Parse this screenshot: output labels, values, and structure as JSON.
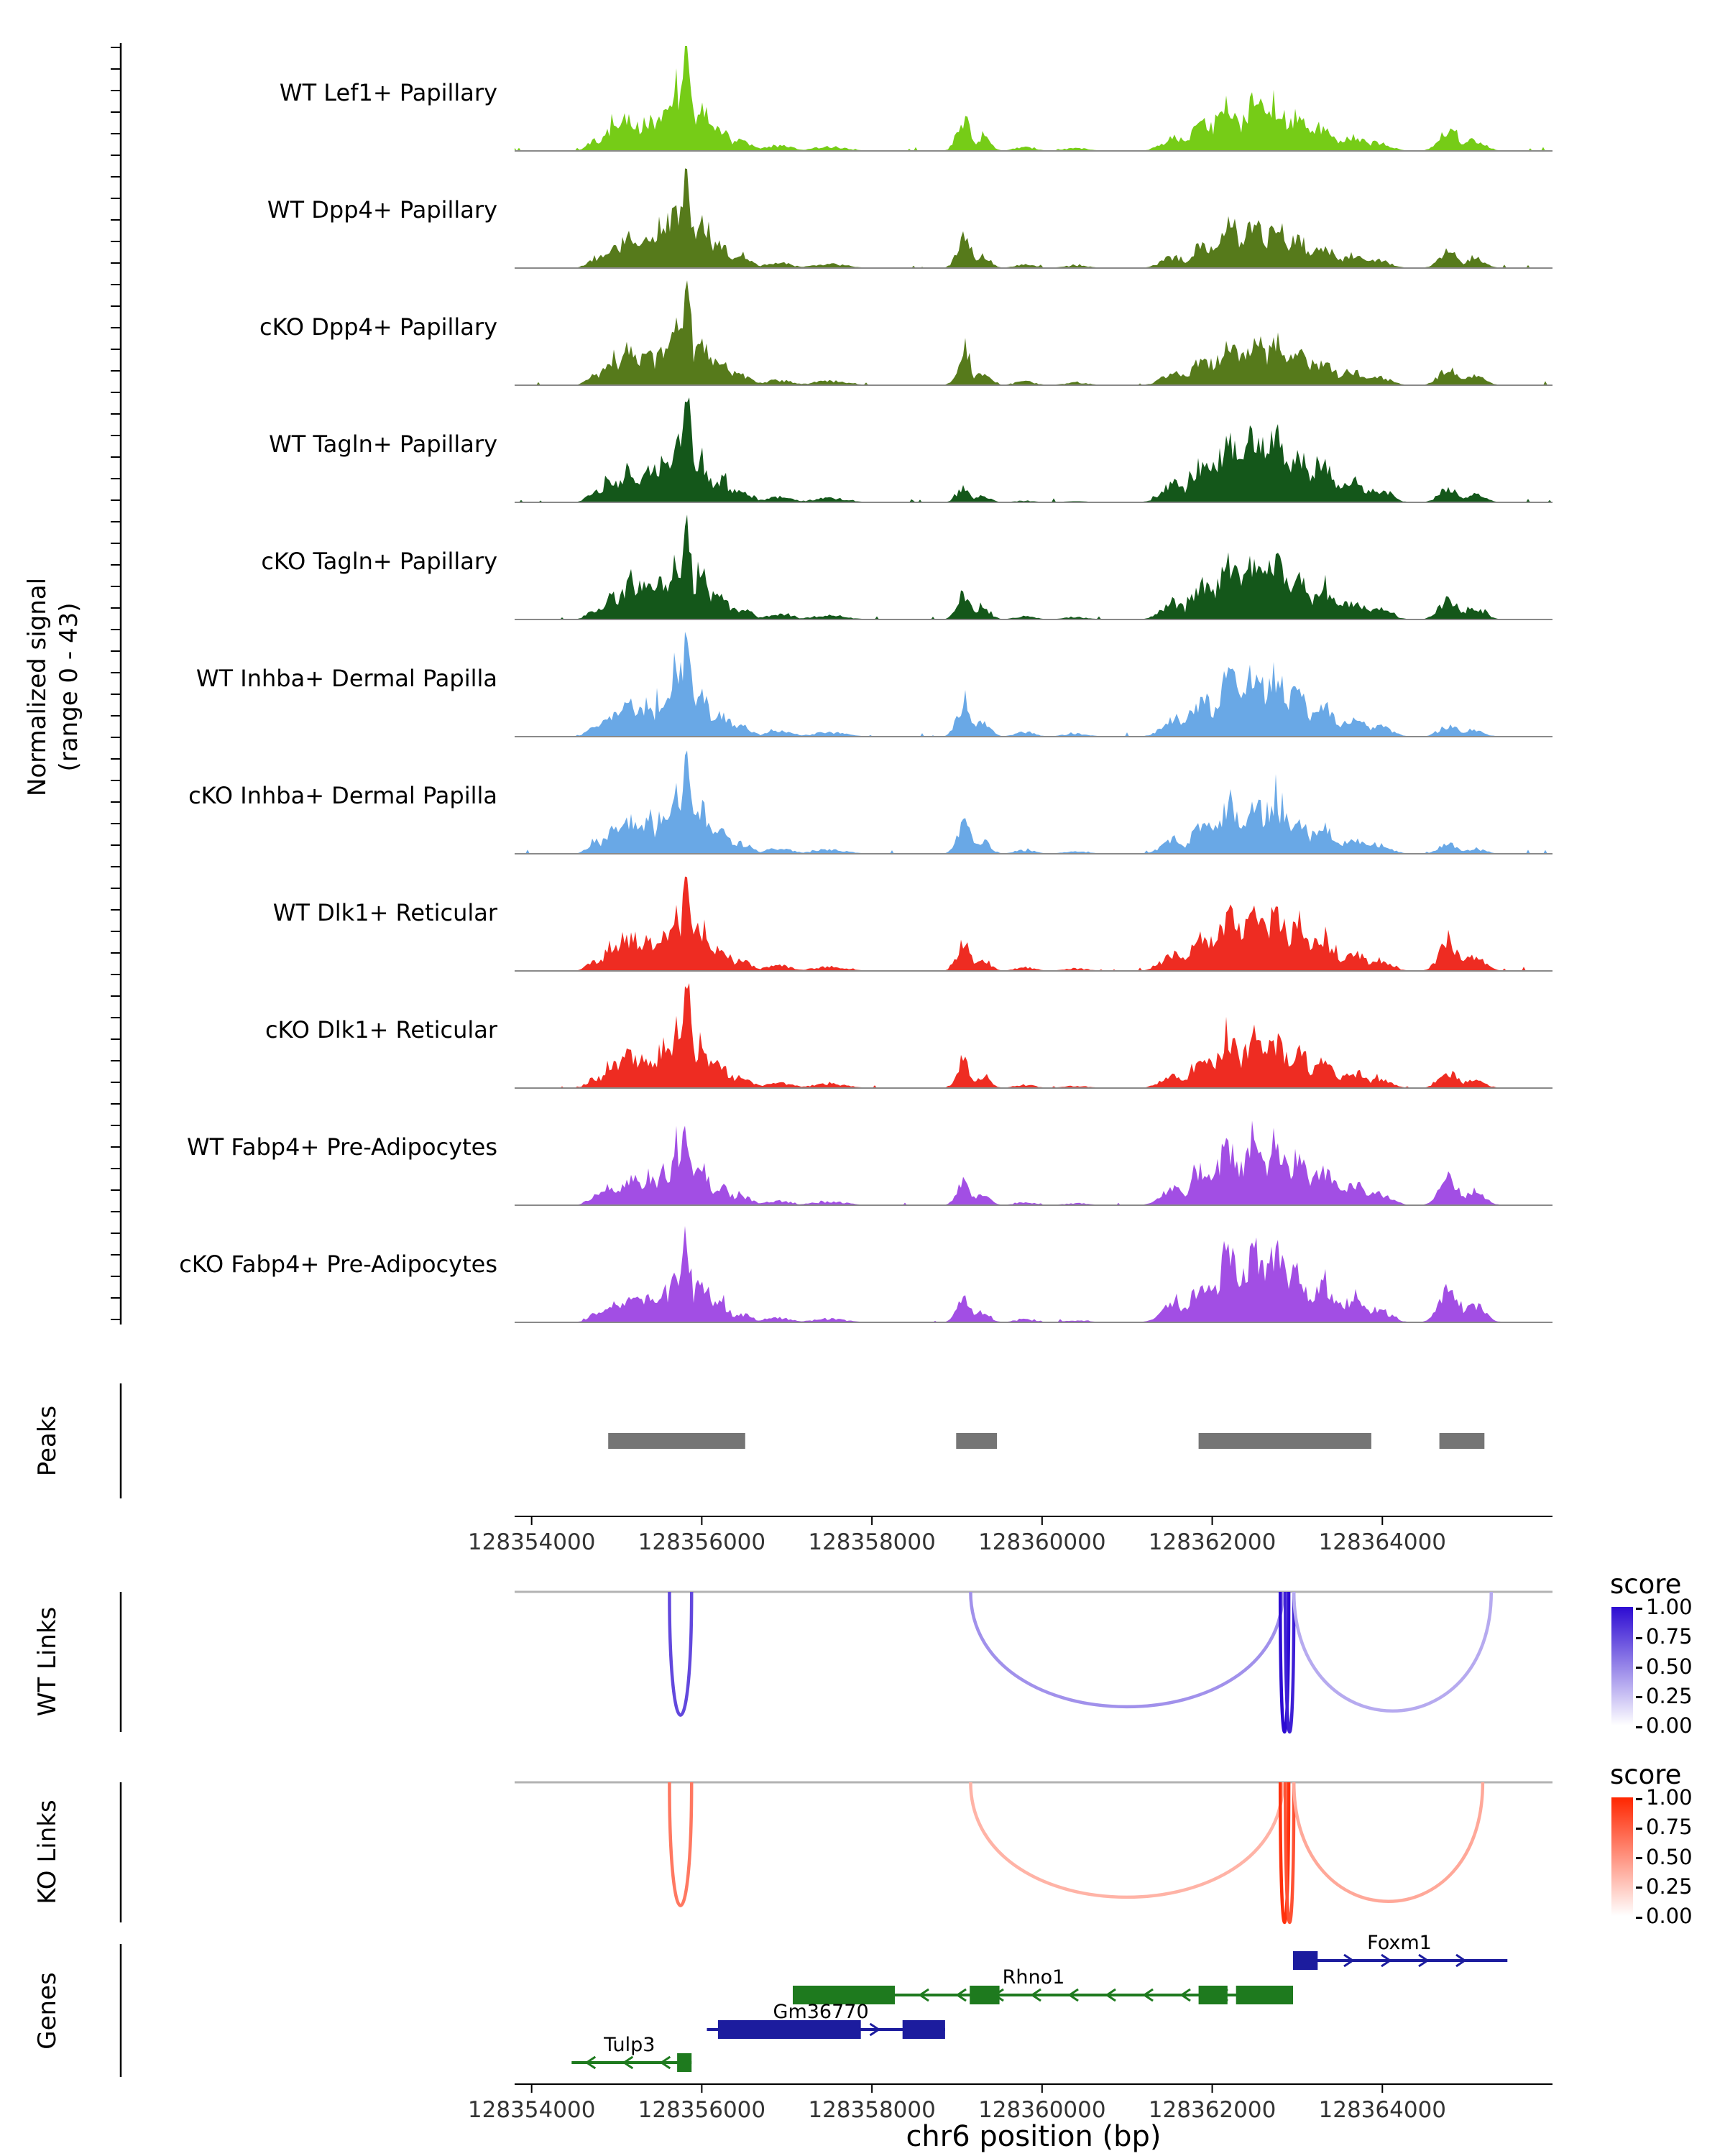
{
  "chart_data": {
    "type": "area",
    "x_title": "chr6 position (bp)",
    "x_domain": [
      128353800,
      128366000
    ],
    "x_ticks": [
      128354000,
      128356000,
      128358000,
      128360000,
      128362000,
      128364000
    ],
    "signal_axis_label": [
      "Normalized signal",
      "(range 0 - 43)"
    ],
    "base_bumps": {
      "A": [
        [
          128354750,
          90,
          0.1
        ],
        [
          128354950,
          110,
          0.22
        ],
        [
          128355150,
          120,
          0.32
        ],
        [
          128355350,
          110,
          0.3
        ],
        [
          128355550,
          100,
          0.38
        ],
        [
          128355700,
          80,
          0.55
        ],
        [
          128355820,
          55,
          1.0
        ],
        [
          128355990,
          100,
          0.42
        ],
        [
          128356200,
          120,
          0.22
        ],
        [
          128356450,
          130,
          0.1
        ],
        [
          128356900,
          160,
          0.05
        ],
        [
          128357500,
          200,
          0.04
        ]
      ],
      "B": [
        [
          128359080,
          80,
          0.95
        ],
        [
          128359300,
          90,
          0.4
        ],
        [
          128359800,
          120,
          0.12
        ],
        [
          128360400,
          150,
          0.08
        ]
      ],
      "C": [
        [
          128361550,
          140,
          0.22
        ],
        [
          128361900,
          140,
          0.48
        ],
        [
          128362200,
          140,
          0.75
        ],
        [
          128362500,
          130,
          0.85
        ],
        [
          128362750,
          120,
          0.8
        ],
        [
          128363000,
          120,
          0.6
        ],
        [
          128363300,
          140,
          0.42
        ],
        [
          128363650,
          150,
          0.25
        ],
        [
          128363950,
          140,
          0.15
        ]
      ],
      "D": [
        [
          128364780,
          110,
          0.75
        ],
        [
          128365080,
          120,
          0.4
        ]
      ]
    },
    "tracks": [
      {
        "label": "WT Lef1+ Papillary",
        "color": "#76CC17",
        "clusters": {
          "A": 1.0,
          "B": 0.32,
          "C": 0.55,
          "D": 0.28
        }
      },
      {
        "label": "WT Dpp4+ Papillary",
        "color": "#567A1B",
        "clusters": {
          "A": 1.0,
          "B": 0.3,
          "C": 0.48,
          "D": 0.22
        }
      },
      {
        "label": "cKO Dpp4+ Papillary",
        "color": "#567A1B",
        "clusters": {
          "A": 1.0,
          "B": 0.3,
          "C": 0.52,
          "D": 0.22
        }
      },
      {
        "label": "WT Tagln+ Papillary",
        "color": "#14571A",
        "clusters": {
          "A": 1.0,
          "B": 0.14,
          "C": 0.8,
          "D": 0.18
        }
      },
      {
        "label": "cKO Tagln+ Papillary",
        "color": "#14571A",
        "clusters": {
          "A": 1.0,
          "B": 0.26,
          "C": 0.7,
          "D": 0.26
        }
      },
      {
        "label": "WT Inhba+ Dermal Papilla",
        "color": "#69A8E6",
        "clusters": {
          "A": 1.0,
          "B": 0.34,
          "C": 0.72,
          "D": 0.14
        }
      },
      {
        "label": "cKO Inhba+ Dermal Papilla",
        "color": "#69A8E6",
        "clusters": {
          "A": 1.0,
          "B": 0.3,
          "C": 0.58,
          "D": 0.12
        }
      },
      {
        "label": "WT Dlk1+ Reticular",
        "color": "#EE2C22",
        "clusters": {
          "A": 1.0,
          "B": 0.28,
          "C": 0.7,
          "D": 0.36
        }
      },
      {
        "label": "cKO Dlk1+ Reticular",
        "color": "#EE2C22",
        "clusters": {
          "A": 1.0,
          "B": 0.26,
          "C": 0.58,
          "D": 0.2
        }
      },
      {
        "label": "WT Fabp4+ Pre-Adipocytes",
        "color": "#A24EE4",
        "clusters": {
          "A": 0.85,
          "B": 0.24,
          "C": 0.75,
          "D": 0.34
        }
      },
      {
        "label": "cKO Fabp4+ Pre-Adipocytes",
        "color": "#A24EE4",
        "clusters": {
          "A": 0.82,
          "B": 0.24,
          "C": 0.82,
          "D": 0.44
        }
      }
    ],
    "peaks": {
      "label": "Peaks",
      "color": "#757575",
      "intervals": [
        [
          128354900,
          128356510
        ],
        [
          128358990,
          128359470
        ],
        [
          128361840,
          128363870
        ],
        [
          128364670,
          128365200
        ]
      ]
    },
    "links": {
      "wt": {
        "label": "WT Links",
        "legend_title": "score",
        "legend_ticks": [
          "1.00",
          "0.75",
          "0.50",
          "0.25",
          "0.00"
        ],
        "max_color": "#2D0BD2",
        "links": [
          {
            "start": 128355620,
            "end": 128355880,
            "score": 0.75,
            "depth": 0.88
          },
          {
            "start": 128359160,
            "end": 128362830,
            "score": 0.45,
            "depth": 0.82
          },
          {
            "start": 128362800,
            "end": 128362900,
            "score": 1.0,
            "depth": 1.0
          },
          {
            "start": 128362860,
            "end": 128362960,
            "score": 0.92,
            "depth": 1.0
          },
          {
            "start": 128362960,
            "end": 128365280,
            "score": 0.35,
            "depth": 0.85
          }
        ]
      },
      "ko": {
        "label": "KO Links",
        "legend_title": "score",
        "legend_ticks": [
          "1.00",
          "0.75",
          "0.50",
          "0.25",
          "0.00"
        ],
        "max_color": "#FF2600",
        "links": [
          {
            "start": 128355620,
            "end": 128355880,
            "score": 0.62,
            "depth": 0.88
          },
          {
            "start": 128359160,
            "end": 128362830,
            "score": 0.35,
            "depth": 0.82
          },
          {
            "start": 128362800,
            "end": 128362900,
            "score": 0.95,
            "depth": 1.0
          },
          {
            "start": 128362860,
            "end": 128362960,
            "score": 0.8,
            "depth": 1.0
          },
          {
            "start": 128362960,
            "end": 128365180,
            "score": 0.4,
            "depth": 0.85
          }
        ]
      }
    },
    "genes": {
      "label": "Genes",
      "items": [
        {
          "name": "Foxm1",
          "color": "#1C1C9E",
          "row": 0,
          "strand": "+",
          "start": 128362950,
          "end": 128365470,
          "exons": [
            [
              128362950,
              128363240
            ]
          ],
          "label_x": 128364200
        },
        {
          "name": "Rhno1",
          "color": "#1E7A1E",
          "row": 1,
          "strand": "-",
          "start": 128357070,
          "end": 128362950,
          "exons": [
            [
              128357070,
              128358270
            ],
            [
              128359150,
              128359500
            ],
            [
              128361840,
              128362180
            ],
            [
              128362280,
              128362950
            ]
          ],
          "label_x": 128359900
        },
        {
          "name": "Gm36770",
          "color": "#1C1C9E",
          "row": 2,
          "strand": "+",
          "start": 128356060,
          "end": 128358860,
          "exons": [
            [
              128356190,
              128357870
            ],
            [
              128358360,
              128358860
            ]
          ],
          "label_x": 128357400
        },
        {
          "name": "Tulp3",
          "color": "#1E7A1E",
          "row": 3,
          "strand": "-",
          "start": 128354470,
          "end": 128355880,
          "exons": [
            [
              128355710,
              128355880
            ]
          ],
          "label_x": 128355150
        }
      ]
    }
  }
}
